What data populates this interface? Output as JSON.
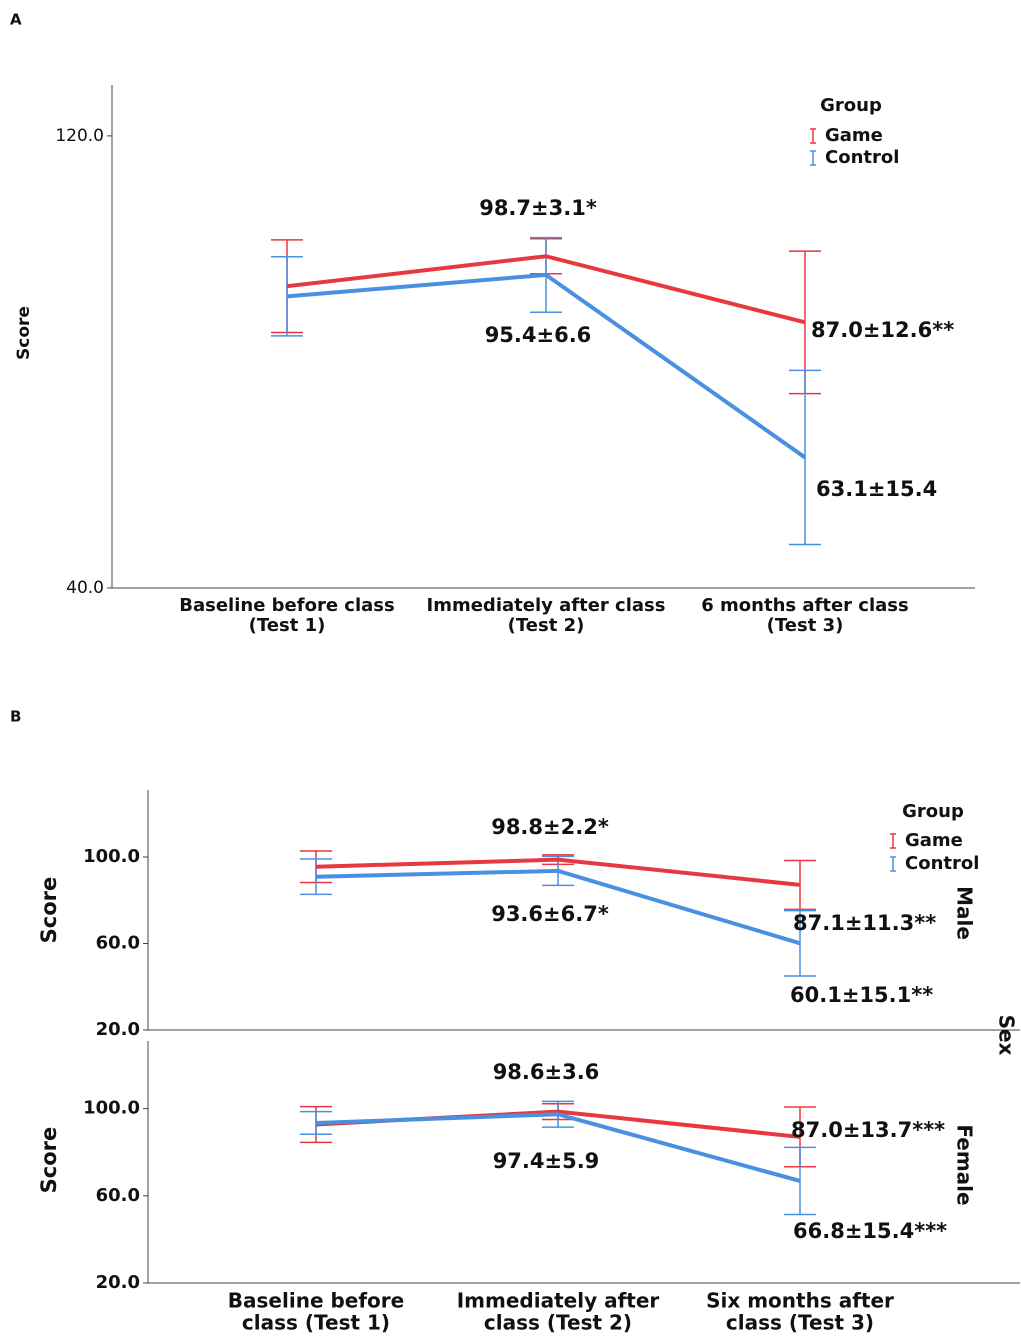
{
  "chart_data": [
    {
      "type": "line",
      "panel": "A",
      "ylabel": "Score",
      "legend_title": "Group",
      "legend": true,
      "categories": [
        [
          "Baseline before class",
          "(Test 1)"
        ],
        [
          "Immediately after class",
          "(Test 2)"
        ],
        [
          "6 months after class",
          "(Test 3)"
        ]
      ],
      "ylim": [
        40,
        129
      ],
      "yticks": [
        {
          "value": 40,
          "label": "40.0"
        },
        {
          "value": 120,
          "label": "120.0"
        }
      ],
      "series": [
        {
          "name": "Game",
          "color": "#e8383f",
          "values": [
            93.4,
            98.7,
            87.0
          ],
          "errors": [
            8.2,
            3.1,
            12.6
          ],
          "value_labels": [
            null,
            "98.7±3.1*",
            "87.0±12.6**"
          ]
        },
        {
          "name": "Control",
          "color": "#4a90e2",
          "values": [
            91.6,
            95.4,
            63.1
          ],
          "errors": [
            7.0,
            6.6,
            15.4
          ],
          "value_labels": [
            null,
            "95.4±6.6",
            "63.1±15.4"
          ]
        }
      ]
    },
    {
      "type": "line",
      "panel": "B",
      "facet": "Male",
      "facet_title": "Sex",
      "ylabel": "Score",
      "legend_title": "Group",
      "legend": true,
      "ylim": [
        20,
        131
      ],
      "yticks": [
        {
          "value": 20,
          "label": "20.0"
        },
        {
          "value": 60,
          "label": "60.0"
        },
        {
          "value": 100,
          "label": "100.0"
        }
      ],
      "series": [
        {
          "name": "Game",
          "color": "#e8383f",
          "values": [
            95.5,
            98.8,
            87.1
          ],
          "errors": [
            7.3,
            2.2,
            11.3
          ],
          "value_labels": [
            null,
            "98.8±2.2*",
            "87.1±11.3**"
          ]
        },
        {
          "name": "Control",
          "color": "#4a90e2",
          "values": [
            90.9,
            93.6,
            60.1
          ],
          "errors": [
            8.2,
            6.7,
            15.1
          ],
          "value_labels": [
            null,
            "93.6±6.7*",
            "60.1±15.1**"
          ]
        }
      ]
    },
    {
      "type": "line",
      "facet": "Female",
      "ylabel": "Score",
      "legend": false,
      "categories": [
        [
          "Baseline before",
          "class  (Test 1)"
        ],
        [
          "Immediately after",
          "class    (Test 2)"
        ],
        [
          "Six months after",
          "class (Test 3)"
        ]
      ],
      "ylim": [
        20,
        131
      ],
      "yticks": [
        {
          "value": 20,
          "label": "20.0"
        },
        {
          "value": 60,
          "label": "60.0"
        },
        {
          "value": 100,
          "label": "100.0"
        }
      ],
      "series": [
        {
          "name": "Game",
          "color": "#e8383f",
          "values": [
            92.7,
            98.6,
            87.0
          ],
          "errors": [
            8.2,
            3.6,
            13.7
          ],
          "value_labels": [
            null,
            "98.6±3.6",
            "87.0±13.7***"
          ]
        },
        {
          "name": "Control",
          "color": "#4a90e2",
          "values": [
            93.4,
            97.4,
            66.8
          ],
          "errors": [
            5.2,
            5.9,
            15.4
          ],
          "value_labels": [
            null,
            "97.4±5.9",
            "66.8±15.4***"
          ]
        }
      ]
    }
  ]
}
